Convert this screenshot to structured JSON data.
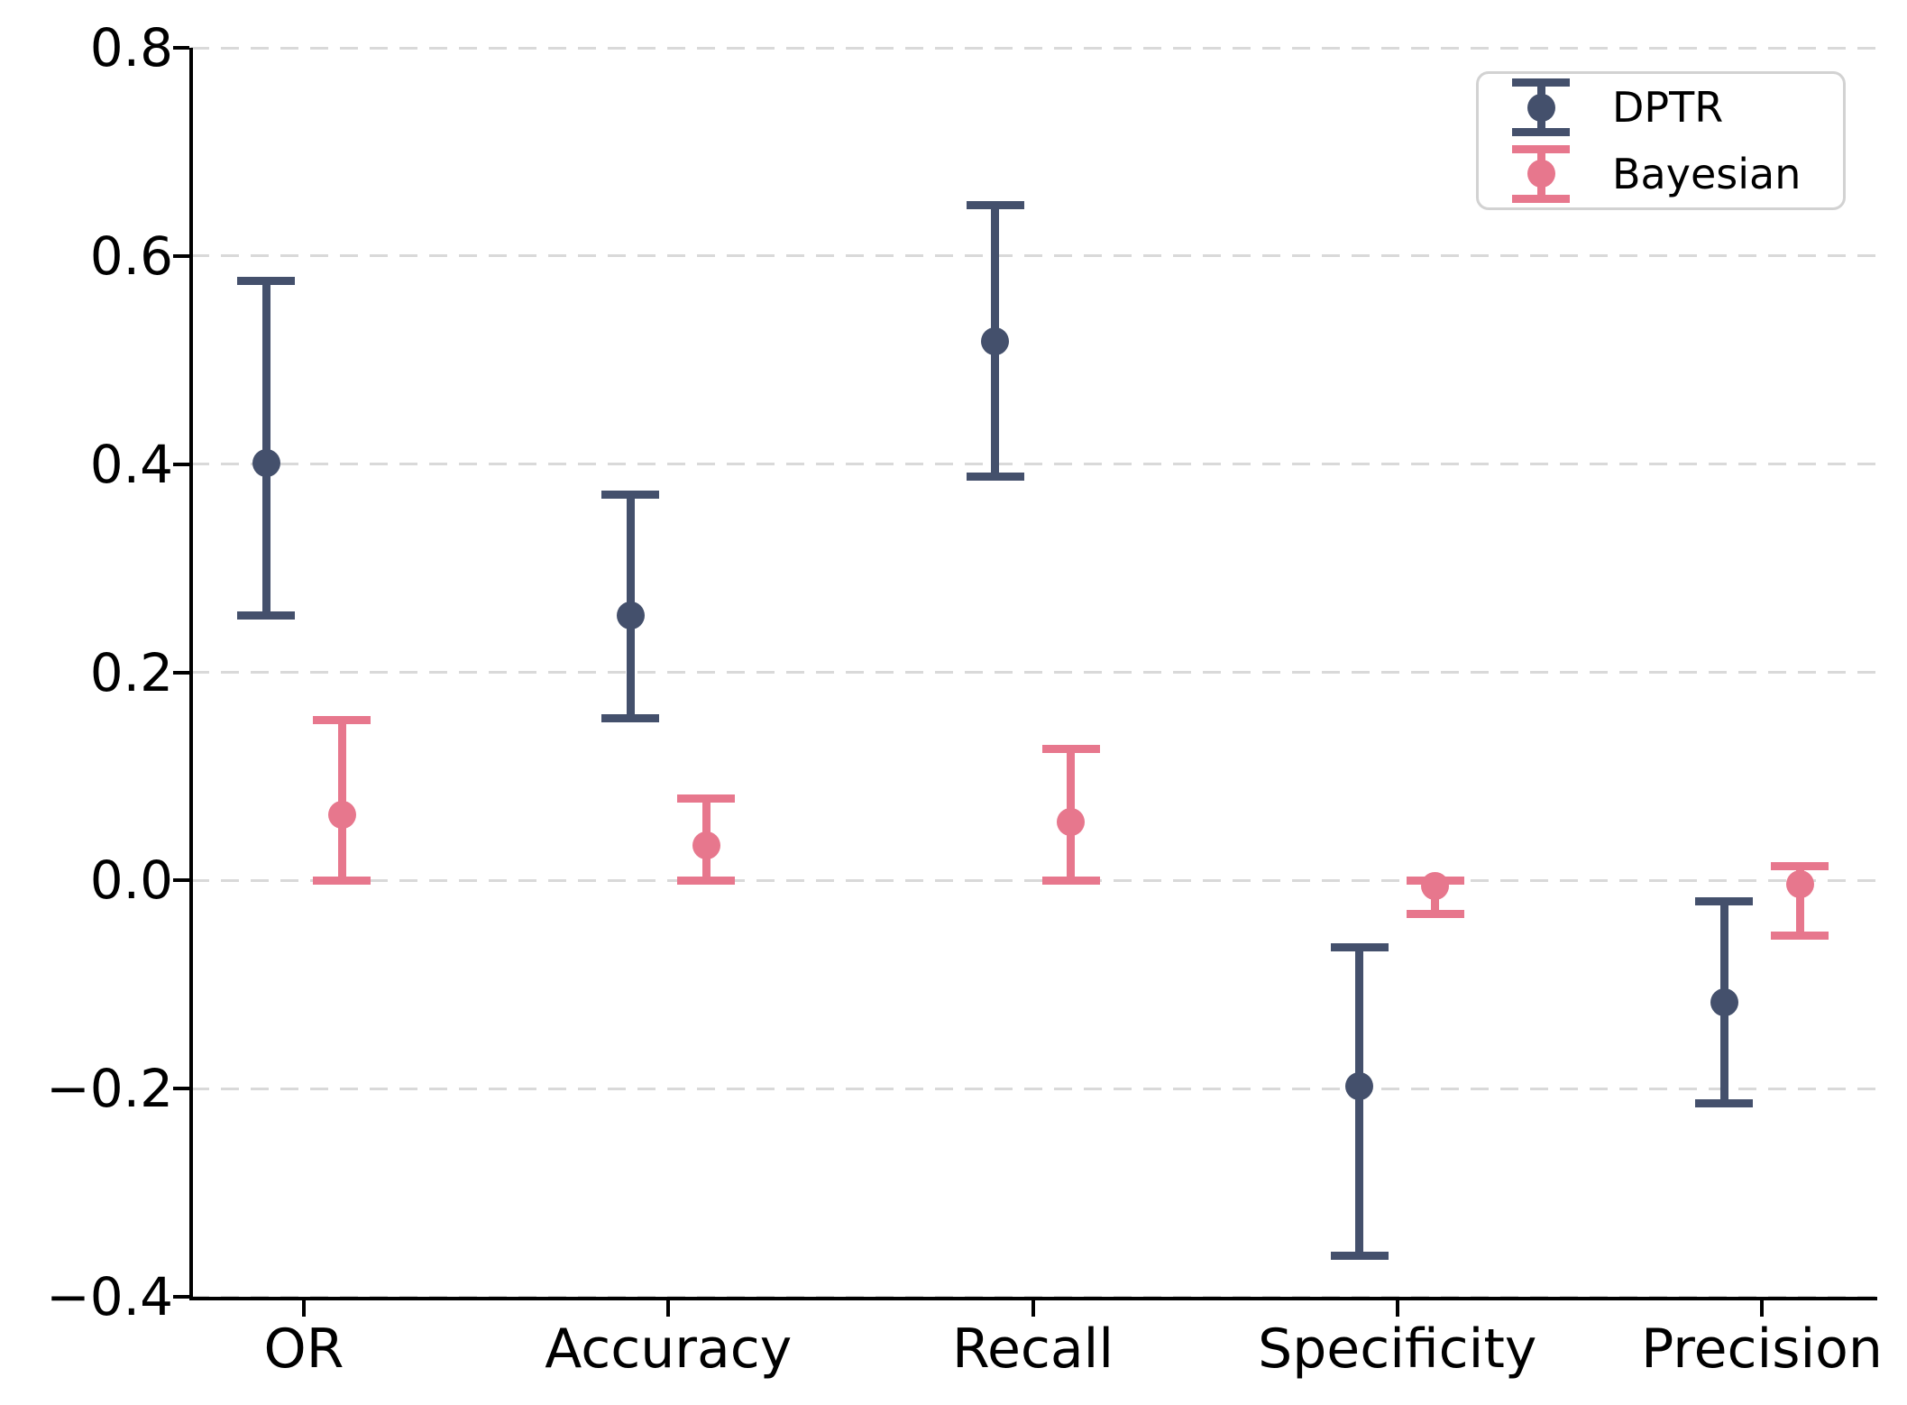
{
  "chart_data": {
    "type": "errorbar",
    "categories": [
      "OR",
      "Accuracy",
      "Recall",
      "Specificity",
      "Precision"
    ],
    "series": [
      {
        "name": "DPTR",
        "color": "#44506c",
        "values": [
          0.401,
          0.255,
          0.518,
          -0.198,
          -0.117
        ],
        "ci_low": [
          0.255,
          0.156,
          0.388,
          -0.361,
          -0.214
        ],
        "ci_high": [
          0.576,
          0.371,
          0.649,
          -0.064,
          -0.02
        ]
      },
      {
        "name": "Bayesian",
        "color": "#e7778d",
        "values": [
          0.063,
          0.034,
          0.056,
          -0.005,
          -0.004
        ],
        "ci_low": [
          0.0,
          0.0,
          0.0,
          -0.032,
          -0.053
        ],
        "ci_high": [
          0.154,
          0.079,
          0.126,
          0.0,
          0.014
        ]
      }
    ],
    "ylim": [
      -0.4,
      0.8
    ],
    "ytick_values": [
      0.8,
      0.6,
      0.4,
      0.2,
      0.0,
      -0.2,
      -0.4
    ],
    "ytick_labels": [
      "0.8",
      "0.6",
      "0.4",
      "0.2",
      "0.0",
      "−0.2",
      "−0.4"
    ],
    "xlabel": "",
    "ylabel": "",
    "title": "",
    "grid": "horizontal-dashed",
    "gridline_color": "#d9d9d9",
    "legend_position": "upper-right"
  }
}
